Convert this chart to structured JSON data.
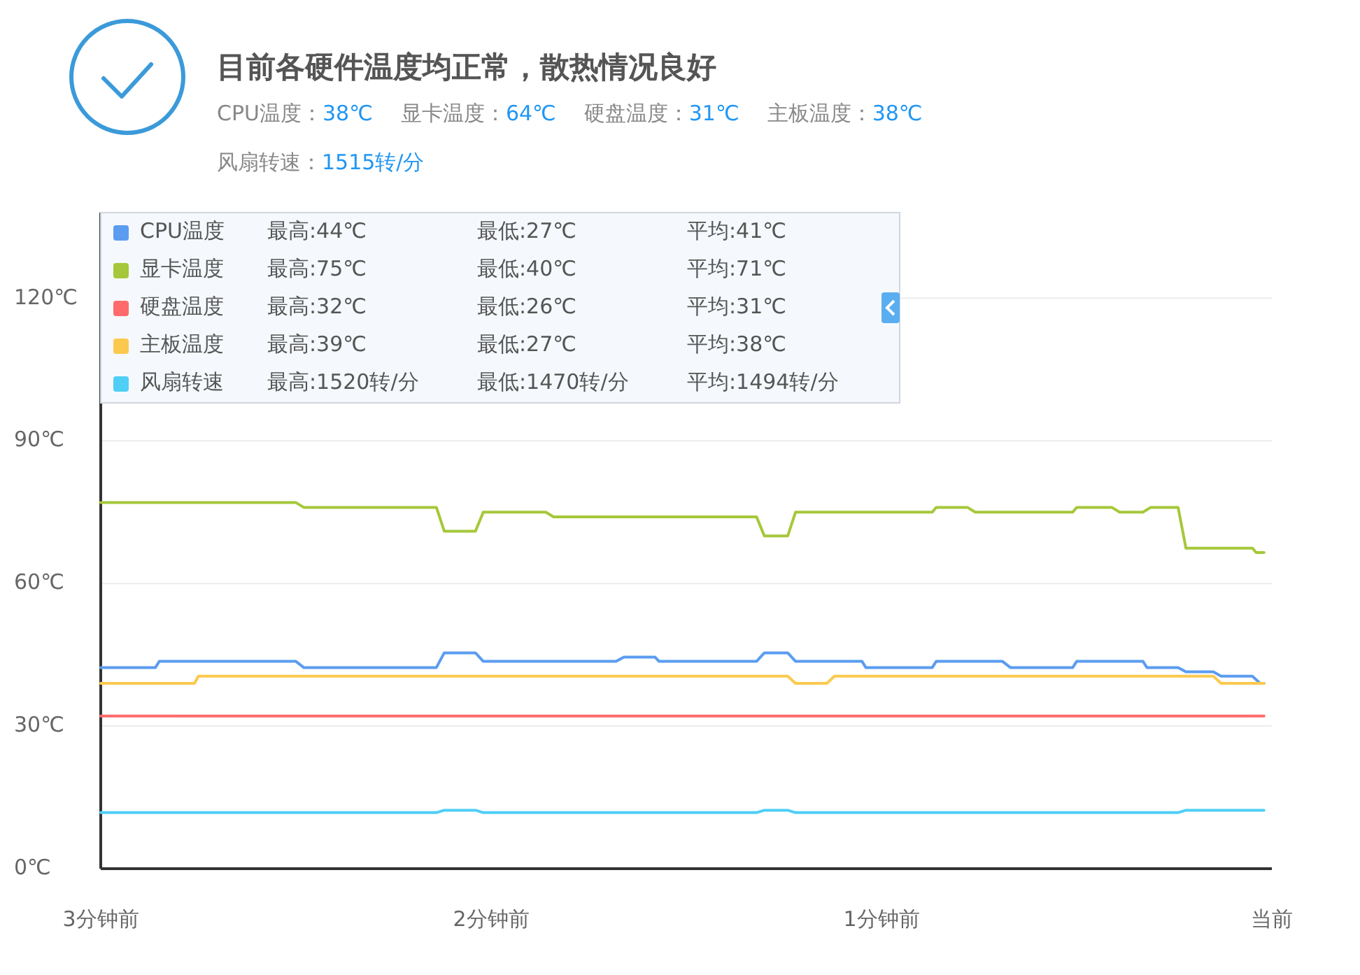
{
  "chart_data": {
    "type": "line",
    "title": "目前各硬件温度均正常，散热情况良好",
    "annotations": [
      "CPU温度：",
      "38℃",
      "显卡温度：",
      "64℃",
      "硬盘温度：",
      "31℃",
      "主板温度：",
      "38℃",
      "风扇转速：",
      "1515转/分",
      "最高:44℃",
      "最低:27℃",
      "平均:41℃",
      "最高:75℃",
      "最低:40℃",
      "平均:71℃",
      "最高:32℃",
      "最低:26℃",
      "平均:31℃",
      "最高:39℃",
      "最低:27℃",
      "平均:38℃",
      "最高:1520转/分",
      "最低:1470转/分",
      "平均:1494转/分"
    ],
    "xlim": [
      -3,
      0
    ],
    "xticks": [
      {
        "value": -3,
        "label": "3分钟前"
      },
      {
        "value": -2,
        "label": "2分钟前"
      },
      {
        "value": -1,
        "label": "1分钟前"
      },
      {
        "value": 0,
        "label": "当前"
      }
    ],
    "ylim": [
      0,
      138
    ],
    "yticks": [
      {
        "value": 0,
        "label": "0℃"
      },
      {
        "value": 30,
        "label": "30℃"
      },
      {
        "value": 60,
        "label": "60℃"
      },
      {
        "value": 90,
        "label": "90℃"
      },
      {
        "value": 120,
        "label": "120℃"
      }
    ],
    "grid": "y",
    "legend": "top left",
    "marker": "none",
    "line_style": "solid",
    "series": [
      {
        "name": "CPU温度",
        "color": "#5b9cf0",
        "x": [
          -3.0,
          -2.86,
          -2.85,
          -2.5,
          -2.48,
          -2.14,
          -2.12,
          -2.04,
          -2.02,
          -1.68,
          -1.66,
          -1.58,
          -1.57,
          -1.32,
          -1.3,
          -1.24,
          -1.22,
          -1.05,
          -1.04,
          -0.87,
          -0.86,
          -0.69,
          -0.67,
          -0.51,
          -0.5,
          -0.33,
          -0.32,
          -0.24,
          -0.22,
          -0.15,
          -0.13,
          -0.05,
          -0.03,
          -0.02
        ],
        "values": [
          42.3,
          42.3,
          43.6,
          43.6,
          42.3,
          42.3,
          45.4,
          45.4,
          43.6,
          43.6,
          44.5,
          44.5,
          43.6,
          43.6,
          45.4,
          45.4,
          43.6,
          43.6,
          42.3,
          42.3,
          43.6,
          43.6,
          42.3,
          42.3,
          43.6,
          43.6,
          42.3,
          42.3,
          41.4,
          41.4,
          40.5,
          40.5,
          39.0,
          39.0
        ]
      },
      {
        "name": "显卡温度",
        "color": "#a5c83a",
        "x": [
          -3.0,
          -2.5,
          -2.48,
          -2.14,
          -2.12,
          -2.04,
          -2.02,
          -1.86,
          -1.84,
          -1.32,
          -1.3,
          -1.24,
          -1.22,
          -0.87,
          -0.86,
          -0.78,
          -0.76,
          -0.51,
          -0.5,
          -0.41,
          -0.39,
          -0.33,
          -0.31,
          -0.24,
          -0.22,
          -0.05,
          -0.04,
          -0.02
        ],
        "values": [
          77,
          77,
          76,
          76,
          71,
          71,
          75,
          75,
          74,
          74,
          70,
          70,
          75,
          75,
          76,
          76,
          75,
          75,
          76,
          76,
          75,
          75,
          76,
          76,
          67.4,
          67.4,
          66.5,
          66.5
        ]
      },
      {
        "name": "硬盘温度",
        "color": "#ff6b6b",
        "x": [
          -3.0,
          -0.02
        ],
        "values": [
          32.1,
          32.1
        ]
      },
      {
        "name": "主板温度",
        "color": "#fcc94f",
        "x": [
          -3.0,
          -2.76,
          -2.75,
          -1.24,
          -1.22,
          -1.14,
          -1.12,
          -0.15,
          -0.13,
          -0.02
        ],
        "values": [
          39.0,
          39.0,
          40.5,
          40.5,
          39.0,
          39.0,
          40.5,
          40.5,
          39.0,
          39.0
        ]
      },
      {
        "name": "风扇转速",
        "color": "#4fcff5",
        "x": [
          -3.0,
          -2.14,
          -2.12,
          -2.04,
          -2.02,
          -1.32,
          -1.3,
          -1.24,
          -1.22,
          -0.24,
          -0.22,
          -0.02
        ],
        "values": [
          11.8,
          11.8,
          12.3,
          12.3,
          11.8,
          11.8,
          12.3,
          12.3,
          11.8,
          11.8,
          12.3,
          12.3
        ]
      }
    ]
  }
}
